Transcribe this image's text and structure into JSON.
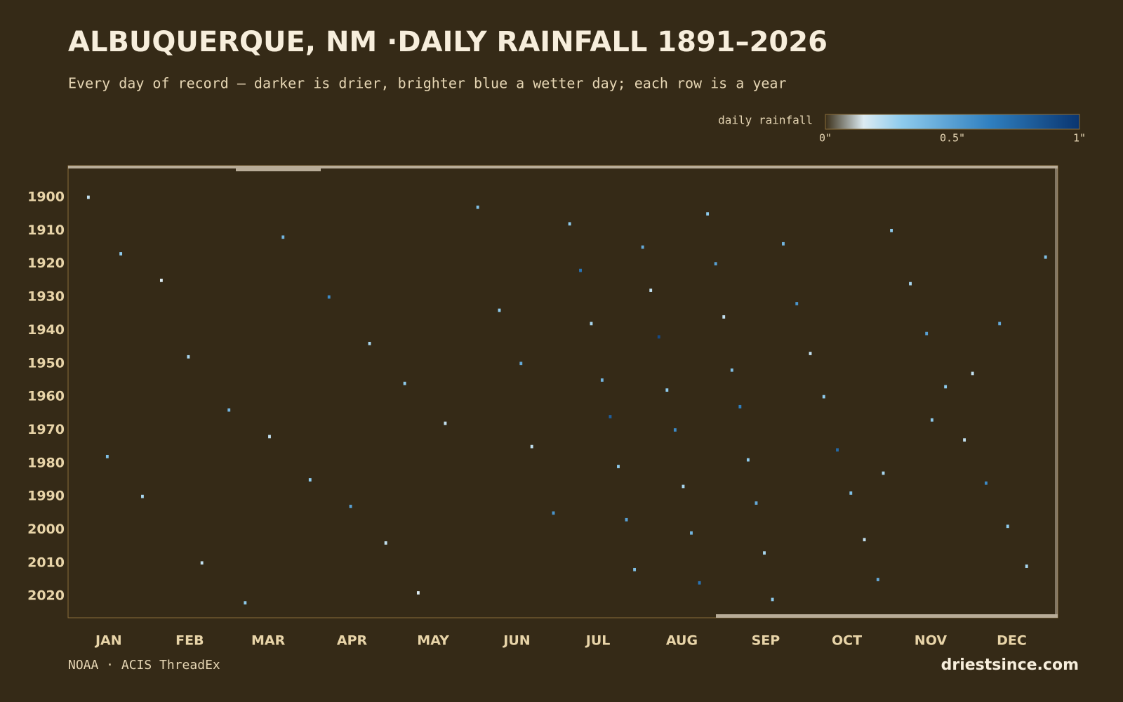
{
  "chart_data": {
    "type": "heatmap",
    "title": "ALBUQUERQUE, NM ·DAILY RAINFALL 1891–2026",
    "subtitle": "Every day of record — darker is drier, brighter blue a wetter day; each row is a year",
    "source": "NOAA · ACIS ThreadEx",
    "brand": "driestsince.com",
    "xlim": [
      1,
      367
    ],
    "xticks": [
      {
        "value": 16,
        "label": "JAN"
      },
      {
        "value": 46,
        "label": "FEB"
      },
      {
        "value": 75,
        "label": "MAR"
      },
      {
        "value": 106,
        "label": "APR"
      },
      {
        "value": 136,
        "label": "MAY"
      },
      {
        "value": 167,
        "label": "JUN"
      },
      {
        "value": 197,
        "label": "JUL"
      },
      {
        "value": 228,
        "label": "AUG"
      },
      {
        "value": 259,
        "label": "SEP"
      },
      {
        "value": 289,
        "label": "OCT"
      },
      {
        "value": 320,
        "label": "NOV"
      },
      {
        "value": 350,
        "label": "DEC"
      }
    ],
    "ylim": [
      1891,
      2027
    ],
    "yticks": [
      1900,
      1910,
      1920,
      1930,
      1940,
      1950,
      1960,
      1970,
      1980,
      1990,
      2000,
      2010,
      2020
    ],
    "colorbar": {
      "label": "daily rainfall",
      "lim": [
        0,
        1
      ],
      "ticks": [
        {
          "value": 0,
          "label": "0\""
        },
        {
          "value": 0.5,
          "label": "0.5\""
        },
        {
          "value": 1,
          "label": "1\""
        }
      ],
      "colorscale": [
        [
          0,
          "#3a2e18"
        ],
        [
          0.15,
          "#dcebf2"
        ],
        [
          0.3,
          "#8ecbed"
        ],
        [
          0.65,
          "#2f7fbf"
        ],
        [
          1,
          "#0a3570"
        ]
      ]
    },
    "x": [
      8,
      20,
      35,
      45,
      60,
      75,
      90,
      105,
      118,
      130,
      15,
      28,
      50,
      66,
      80,
      97,
      112,
      125,
      140,
      152,
      160,
      168,
      172,
      180,
      186,
      190,
      194,
      198,
      201,
      204,
      207,
      210,
      213,
      216,
      219,
      222,
      225,
      228,
      231,
      234,
      237,
      240,
      243,
      246,
      249,
      252,
      255,
      258,
      261,
      265,
      270,
      275,
      280,
      285,
      290,
      295,
      300,
      305,
      312,
      318,
      325,
      332,
      340,
      348,
      355,
      362,
      345,
      335,
      320,
      302
    ],
    "y": [
      1900,
      1917,
      1925,
      1948,
      1964,
      1972,
      1985,
      1993,
      2004,
      2019,
      1978,
      1990,
      2010,
      2022,
      1912,
      1930,
      1944,
      1956,
      1968,
      1903,
      1934,
      1950,
      1975,
      1995,
      1908,
      1922,
      1938,
      1955,
      1966,
      1981,
      1997,
      2012,
      1915,
      1928,
      1942,
      1958,
      1970,
      1987,
      2001,
      2016,
      1905,
      1920,
      1936,
      1952,
      1963,
      1979,
      1992,
      2007,
      2021,
      1914,
      1932,
      1947,
      1960,
      1976,
      1989,
      2003,
      2015,
      1910,
      1926,
      1941,
      1957,
      1973,
      1986,
      1999,
      2011,
      1918,
      1938,
      1953,
      1967,
      1983
    ],
    "values": [
      0.2,
      0.3,
      0.15,
      0.25,
      0.4,
      0.2,
      0.3,
      0.5,
      0.2,
      0.15,
      0.35,
      0.25,
      0.2,
      0.3,
      0.4,
      0.6,
      0.25,
      0.3,
      0.2,
      0.35,
      0.3,
      0.45,
      0.2,
      0.55,
      0.3,
      0.7,
      0.25,
      0.4,
      0.8,
      0.3,
      0.5,
      0.35,
      0.45,
      0.2,
      0.9,
      0.3,
      0.6,
      0.25,
      0.4,
      0.7,
      0.3,
      0.5,
      0.2,
      0.35,
      0.65,
      0.3,
      0.45,
      0.25,
      0.3,
      0.4,
      0.55,
      0.2,
      0.3,
      0.75,
      0.35,
      0.2,
      0.45,
      0.3,
      0.25,
      0.5,
      0.3,
      0.2,
      0.6,
      0.3,
      0.25,
      0.35,
      0.45,
      0.2,
      0.3,
      0.25
    ]
  }
}
